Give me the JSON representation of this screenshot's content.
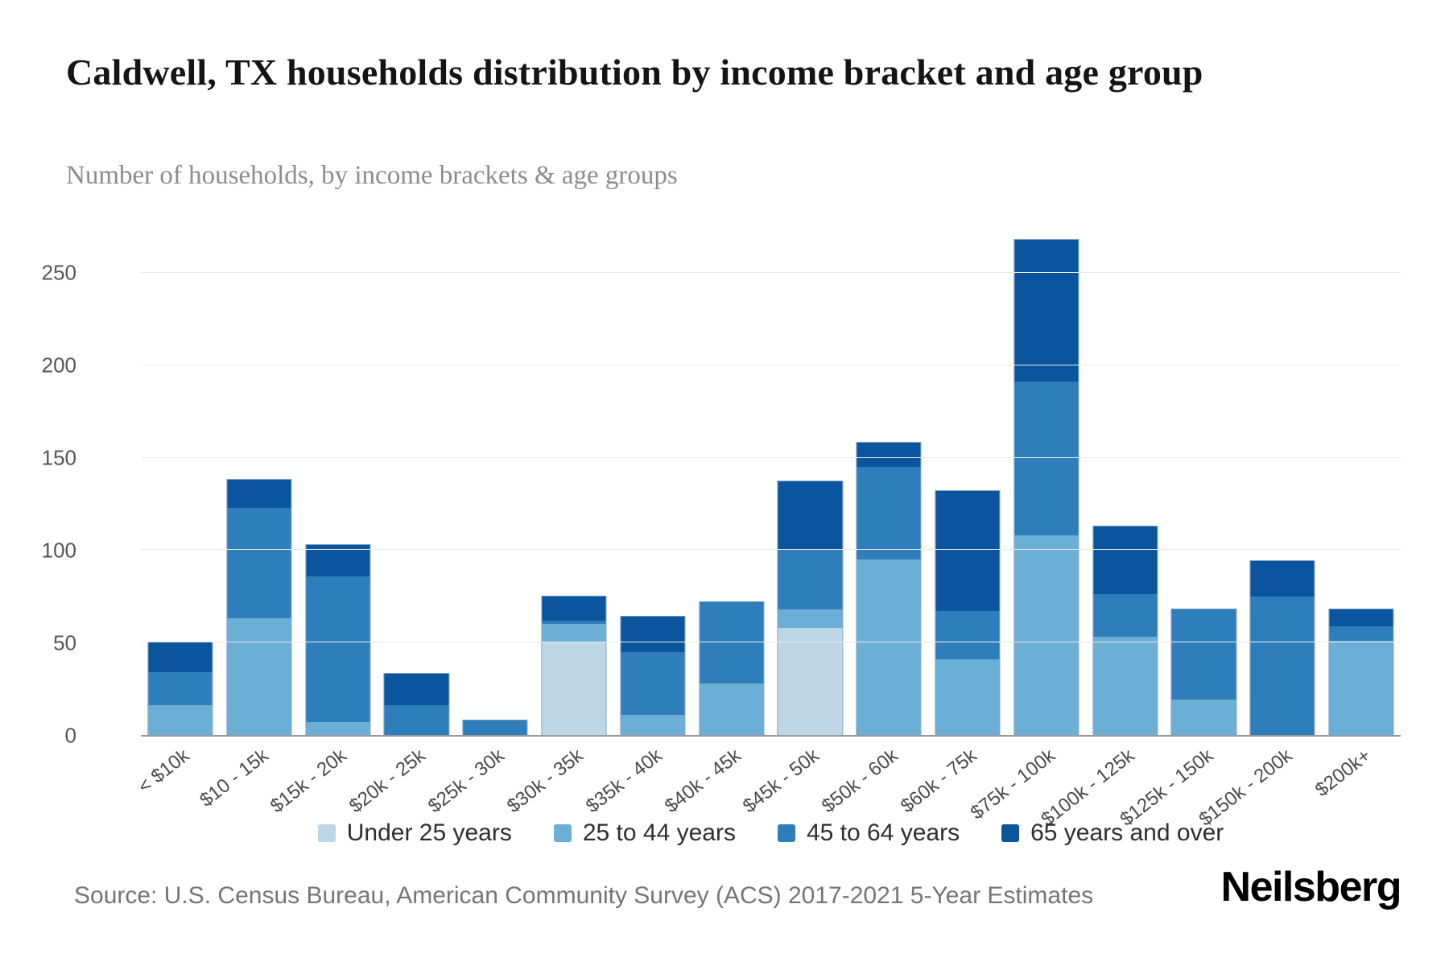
{
  "title": "Caldwell, TX households distribution by income bracket and age group",
  "subtitle": "Number of households, by income brackets & age groups",
  "source": "Source: U.S. Census Bureau, American Community Survey (ACS) 2017-2021 5-Year Estimates",
  "brand": "Neilsberg",
  "colors": {
    "under_25": "#bdd7e7",
    "age_25_44": "#6baed6",
    "age_45_64": "#2e7ebc",
    "age_65_over": "#0b559f",
    "gridline": "#ebebeb",
    "axis": "#9a9a9a"
  },
  "chart_data": {
    "type": "bar",
    "stacked": true,
    "title": "Caldwell, TX households distribution by income bracket and age group",
    "xlabel": "",
    "ylabel": "Number of households",
    "ylim": [
      0,
      270
    ],
    "yticks": [
      0,
      50,
      100,
      150,
      200,
      250
    ],
    "grid": true,
    "legend_position": "bottom",
    "categories": [
      "< $10k",
      "$10 - 15k",
      "$15k - 20k",
      "$20k - 25k",
      "$25k - 30k",
      "$30k - 35k",
      "$35k - 40k",
      "$40k - 45k",
      "$45k - 50k",
      "$50k - 60k",
      "$60k - 75k",
      "$75k - 100k",
      "$100k - 125k",
      "$125k - 150k",
      "$150k - 200k",
      "$200k+"
    ],
    "series": [
      {
        "name": "Under 25 years",
        "color": "#bdd7e7",
        "values": [
          0,
          0,
          0,
          0,
          0,
          50,
          0,
          0,
          58,
          0,
          0,
          0,
          0,
          0,
          0,
          0
        ]
      },
      {
        "name": "25 to 44 years",
        "color": "#6baed6",
        "values": [
          16,
          63,
          7,
          0,
          0,
          10,
          11,
          28,
          10,
          95,
          41,
          108,
          53,
          19,
          0,
          51
        ]
      },
      {
        "name": "45 to 64 years",
        "color": "#2e7ebc",
        "values": [
          18,
          60,
          79,
          16,
          8,
          2,
          34,
          44,
          32,
          50,
          26,
          83,
          23,
          49,
          75,
          8
        ]
      },
      {
        "name": "65 years and over",
        "color": "#0b559f",
        "values": [
          16,
          15,
          17,
          17,
          0,
          13,
          19,
          0,
          37,
          13,
          65,
          77,
          37,
          0,
          19,
          9
        ]
      }
    ],
    "totals": [
      50,
      138,
      103,
      33,
      8,
      75,
      64,
      72,
      137,
      158,
      132,
      268,
      113,
      68,
      94,
      68
    ]
  }
}
